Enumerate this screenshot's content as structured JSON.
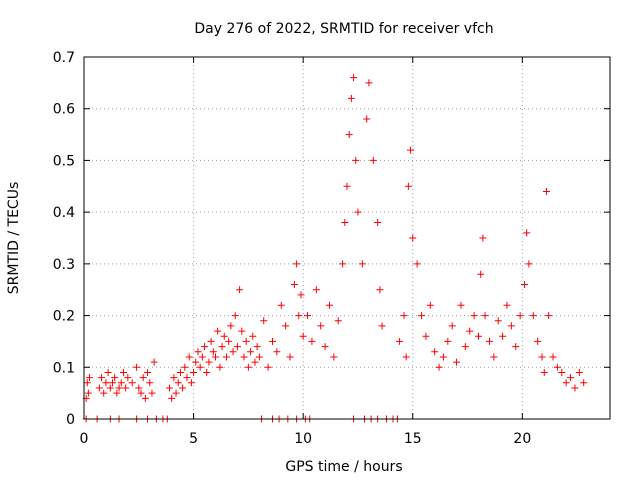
{
  "chart_data": {
    "type": "scatter",
    "title": "Day 276 of 2022, SRMTID for receiver vfch",
    "xlabel": "GPS time / hours",
    "ylabel": "SRMTID / TECUs",
    "xlim": [
      0,
      24
    ],
    "ylim": [
      0,
      0.7
    ],
    "xticks": [
      "0",
      "5",
      "10",
      "15",
      "20"
    ],
    "xtick_values": [
      0,
      5,
      10,
      15,
      20
    ],
    "yticks": [
      "0",
      "0.1",
      "0.2",
      "0.3",
      "0.4",
      "0.5",
      "0.6",
      "0.7"
    ],
    "ytick_values": [
      0,
      0.1,
      0.2,
      0.3,
      0.4,
      0.5,
      0.6,
      0.7
    ],
    "grid": true,
    "marker": "+",
    "color": "#ff0000",
    "series": [
      {
        "name": "SRMTID",
        "x": [
          0.1,
          0.15,
          0.2,
          0.25,
          0.7,
          0.8,
          0.9,
          1.0,
          1.1,
          1.2,
          1.3,
          1.4,
          1.5,
          1.6,
          1.7,
          1.8,
          1.9,
          2.0,
          2.2,
          2.4,
          2.5,
          2.6,
          2.7,
          2.8,
          2.9,
          3.0,
          3.1,
          3.2,
          3.9,
          4.0,
          4.1,
          4.2,
          4.3,
          4.4,
          4.5,
          4.6,
          4.7,
          4.8,
          4.9,
          5.0,
          5.1,
          5.2,
          5.3,
          5.4,
          5.5,
          5.6,
          5.7,
          5.8,
          5.9,
          6.0,
          6.1,
          6.2,
          6.3,
          6.4,
          6.5,
          6.6,
          6.7,
          6.8,
          6.9,
          7.0,
          7.1,
          7.2,
          7.3,
          7.4,
          7.5,
          7.6,
          7.7,
          7.8,
          7.9,
          8.0,
          8.2,
          8.4,
          8.6,
          8.8,
          9.0,
          9.2,
          9.4,
          9.6,
          9.7,
          9.8,
          9.9,
          10.0,
          10.2,
          10.4,
          10.6,
          10.8,
          11.0,
          11.2,
          11.4,
          11.6,
          11.8,
          11.9,
          12.0,
          12.1,
          12.2,
          12.3,
          12.4,
          12.5,
          12.7,
          12.9,
          13.0,
          13.2,
          13.4,
          13.5,
          13.6,
          14.4,
          14.6,
          14.7,
          14.8,
          14.9,
          15.0,
          15.2,
          15.4,
          15.6,
          15.8,
          16.0,
          16.2,
          16.4,
          16.6,
          16.8,
          17.0,
          17.2,
          17.4,
          17.6,
          17.8,
          18.0,
          18.1,
          18.2,
          18.3,
          18.5,
          18.7,
          18.9,
          19.1,
          19.3,
          19.5,
          19.7,
          19.9,
          20.1,
          20.2,
          20.3,
          20.5,
          20.7,
          20.9,
          21.0,
          21.1,
          21.2,
          21.4,
          21.6,
          21.8,
          22.0,
          22.2,
          22.4,
          22.6,
          22.8,
          0.1,
          0.6,
          1.2,
          1.6,
          2.4,
          2.9,
          3.3,
          3.6,
          3.8,
          8.1,
          8.6,
          8.9,
          9.3,
          9.7,
          10.1,
          10.3,
          12.3,
          12.8,
          13.1,
          13.4,
          13.8,
          14.1,
          14.3
        ],
        "y": [
          0.04,
          0.07,
          0.05,
          0.08,
          0.06,
          0.08,
          0.05,
          0.07,
          0.09,
          0.06,
          0.07,
          0.08,
          0.05,
          0.06,
          0.07,
          0.09,
          0.06,
          0.08,
          0.07,
          0.1,
          0.06,
          0.05,
          0.08,
          0.04,
          0.09,
          0.07,
          0.05,
          0.11,
          0.06,
          0.04,
          0.08,
          0.05,
          0.07,
          0.09,
          0.06,
          0.1,
          0.08,
          0.12,
          0.07,
          0.09,
          0.11,
          0.13,
          0.1,
          0.12,
          0.14,
          0.09,
          0.11,
          0.15,
          0.13,
          0.12,
          0.17,
          0.1,
          0.14,
          0.16,
          0.12,
          0.15,
          0.18,
          0.13,
          0.2,
          0.14,
          0.25,
          0.17,
          0.12,
          0.15,
          0.1,
          0.13,
          0.16,
          0.11,
          0.14,
          0.12,
          0.19,
          0.1,
          0.15,
          0.13,
          0.22,
          0.18,
          0.12,
          0.26,
          0.3,
          0.2,
          0.24,
          0.16,
          0.2,
          0.15,
          0.25,
          0.18,
          0.14,
          0.22,
          0.12,
          0.19,
          0.3,
          0.38,
          0.45,
          0.55,
          0.62,
          0.66,
          0.5,
          0.4,
          0.3,
          0.58,
          0.65,
          0.5,
          0.38,
          0.25,
          0.18,
          0.15,
          0.2,
          0.12,
          0.45,
          0.52,
          0.35,
          0.3,
          0.2,
          0.16,
          0.22,
          0.13,
          0.1,
          0.12,
          0.15,
          0.18,
          0.11,
          0.22,
          0.14,
          0.17,
          0.2,
          0.16,
          0.28,
          0.35,
          0.2,
          0.15,
          0.12,
          0.19,
          0.16,
          0.22,
          0.18,
          0.14,
          0.2,
          0.26,
          0.36,
          0.3,
          0.2,
          0.15,
          0.12,
          0.09,
          0.44,
          0.2,
          0.12,
          0.1,
          0.09,
          0.07,
          0.08,
          0.06,
          0.09,
          0.07,
          0,
          0,
          0,
          0,
          0,
          0,
          0,
          0,
          0,
          0,
          0,
          0,
          0,
          0,
          0,
          0,
          0,
          0,
          0,
          0,
          0,
          0,
          0
        ]
      }
    ]
  }
}
